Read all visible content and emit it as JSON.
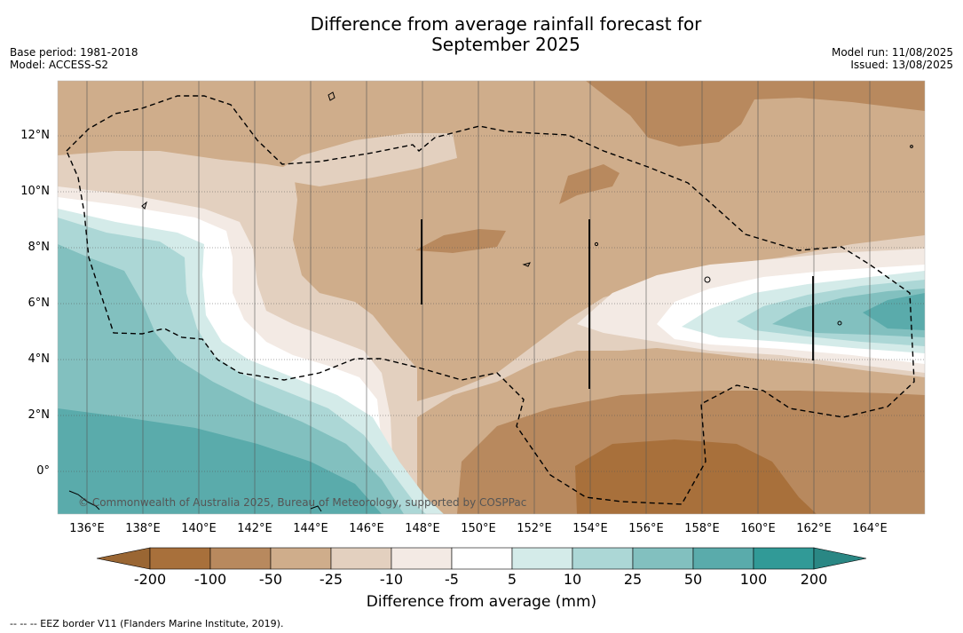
{
  "title": {
    "line1": "Difference from average rainfall forecast for",
    "line2": "September 2025"
  },
  "meta_left": {
    "base_period": "Base period: 1981-2018",
    "model": "Model: ACCESS-S2"
  },
  "meta_right": {
    "model_run": "Model run: 11/08/2025",
    "issued": "Issued: 13/08/2025"
  },
  "copyright": "© Commonwealth of Australia 2025, Bureau of Meteorology, supported by COSPPac",
  "footnote": "--  --  -- EEZ border V11 (Flanders Marine Institute, 2019).",
  "colorbar": {
    "title": "Difference from average (mm)",
    "ticks": [
      "-200",
      "-100",
      "-50",
      "-25",
      "-10",
      "-5",
      "5",
      "10",
      "25",
      "50",
      "100",
      "200"
    ],
    "colors": [
      "#a8703b",
      "#b8895e",
      "#cfad8b",
      "#e3d0bf",
      "#f3eae4",
      "#ffffff",
      "#d4ebe9",
      "#acd7d6",
      "#82c0bf",
      "#5aabab",
      "#319a97"
    ],
    "under_color": "#9a6633",
    "over_color": "#2a8784"
  },
  "map": {
    "lat_labels": [
      "12°N",
      "10°N",
      "8°N",
      "6°N",
      "4°N",
      "2°N",
      "0°"
    ],
    "lon_labels": [
      "136°E",
      "138°E",
      "140°E",
      "142°E",
      "144°E",
      "146°E",
      "148°E",
      "150°E",
      "152°E",
      "154°E",
      "156°E",
      "158°E",
      "160°E",
      "162°E",
      "164°E"
    ]
  }
}
